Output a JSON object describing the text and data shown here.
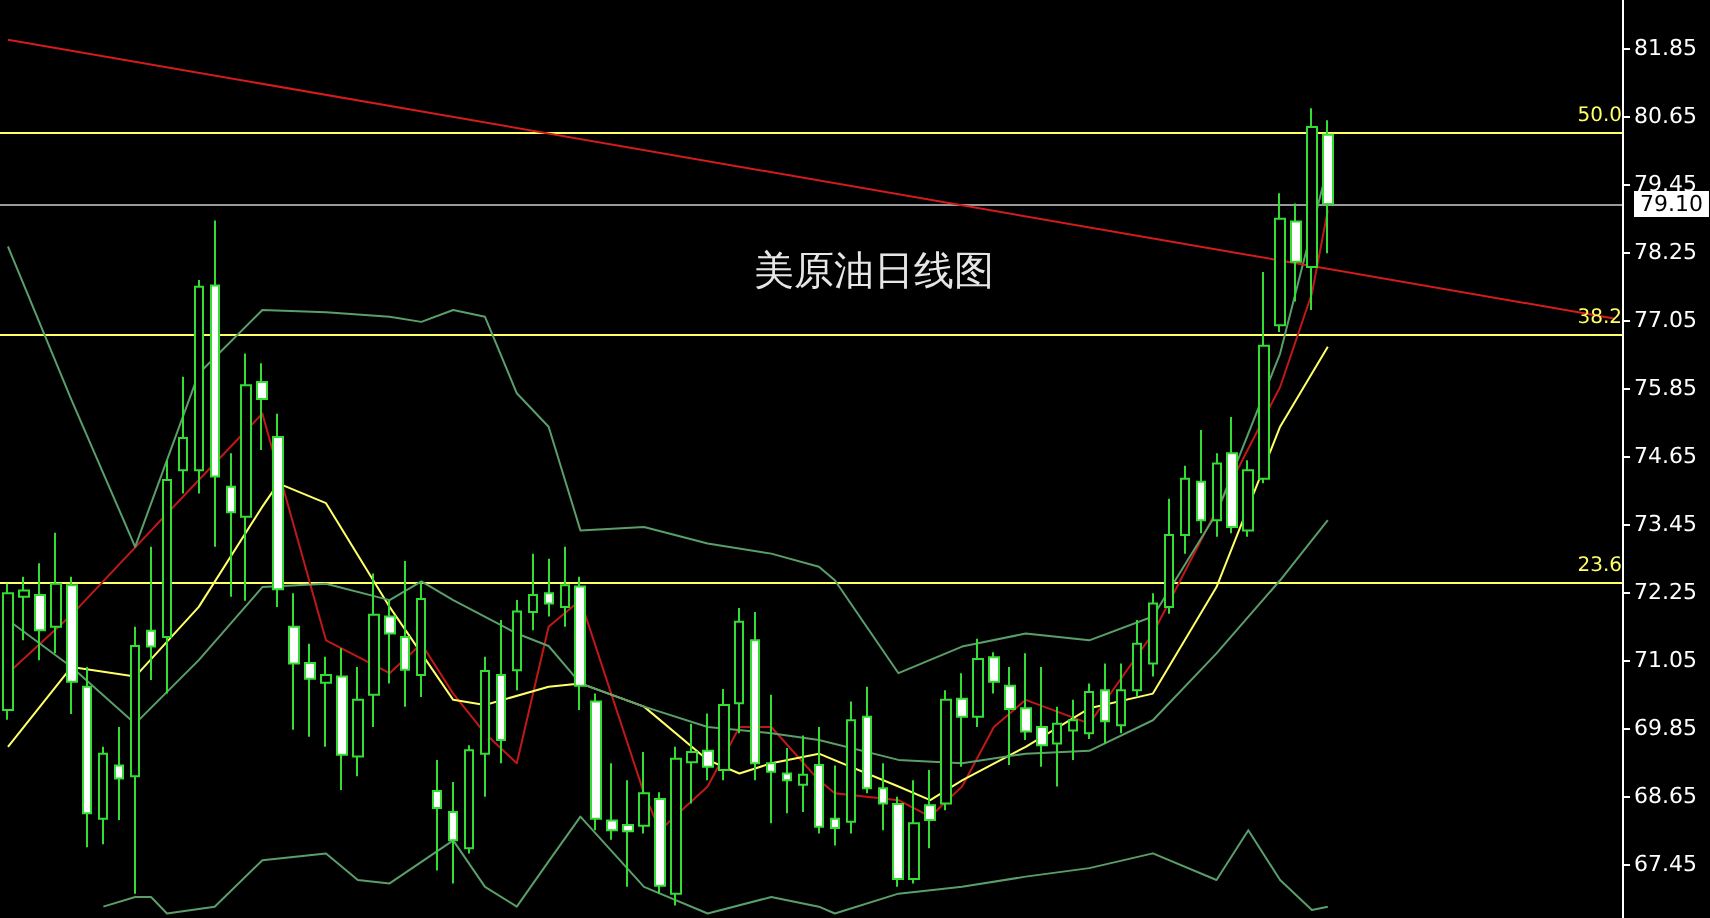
{
  "chart_data": {
    "type": "candlestick",
    "title": "美原油日线图",
    "categories": [
      null,
      null,
      null,
      null,
      null,
      null,
      null,
      null,
      null,
      null,
      null,
      null,
      null,
      null,
      null,
      null,
      null,
      null,
      null,
      null,
      null,
      null,
      null,
      null,
      null,
      null,
      null,
      null,
      null,
      null,
      null,
      null,
      null,
      null,
      null,
      null,
      null,
      null,
      null,
      null,
      null,
      null,
      null,
      null,
      null,
      null,
      null,
      null,
      null,
      null,
      null,
      null,
      null,
      null,
      null,
      null,
      null,
      null,
      null,
      null,
      null,
      null,
      null,
      null,
      null,
      null,
      null,
      null,
      null,
      null,
      null,
      null,
      null,
      null,
      null,
      null,
      null,
      null,
      null,
      null,
      null,
      null,
      null,
      null,
      null,
      null,
      null,
      null,
      null,
      null,
      null,
      null,
      null,
      null,
      null,
      null,
      null,
      null,
      null,
      null,
      null,
      null
    ],
    "color": "#33dd33",
    "ohlc": [
      [
        70.17,
        72.4,
        70.0,
        72.23
      ],
      [
        72.17,
        72.52,
        71.4,
        72.28
      ],
      [
        72.2,
        72.76,
        71.05,
        71.58
      ],
      [
        71.64,
        73.3,
        71.17,
        72.4
      ],
      [
        72.37,
        72.52,
        70.1,
        70.67
      ],
      [
        70.58,
        70.93,
        67.75,
        68.35
      ],
      [
        68.25,
        69.52,
        67.8,
        69.4
      ],
      [
        69.19,
        69.87,
        68.23,
        68.96
      ],
      [
        69.0,
        71.64,
        66.93,
        71.3
      ],
      [
        71.57,
        73.05,
        70.7,
        71.29
      ],
      [
        71.46,
        74.58,
        70.46,
        74.23
      ],
      [
        74.4,
        76.05,
        73.99,
        74.97
      ],
      [
        74.4,
        77.76,
        73.99,
        77.64
      ],
      [
        77.66,
        78.81,
        73.05,
        74.29
      ],
      [
        74.11,
        74.7,
        72.17,
        73.66
      ],
      [
        73.58,
        76.46,
        72.1,
        75.9
      ],
      [
        75.96,
        76.29,
        74.76,
        75.66
      ],
      [
        74.99,
        75.4,
        71.99,
        72.3
      ],
      [
        71.64,
        72.23,
        69.82,
        70.99
      ],
      [
        71.0,
        71.34,
        69.7,
        70.72
      ],
      [
        70.65,
        71.11,
        69.52,
        70.79
      ],
      [
        70.76,
        71.26,
        68.76,
        69.38
      ],
      [
        69.35,
        70.93,
        69.0,
        70.35
      ],
      [
        70.44,
        72.58,
        69.87,
        71.85
      ],
      [
        71.82,
        72.11,
        70.64,
        71.52
      ],
      [
        71.46,
        72.8,
        70.23,
        70.88
      ],
      [
        70.79,
        72.44,
        70.4,
        72.13
      ],
      [
        68.74,
        69.29,
        67.34,
        68.44
      ],
      [
        68.37,
        68.9,
        67.11,
        67.87
      ],
      [
        67.73,
        69.55,
        67.64,
        69.46
      ],
      [
        69.4,
        71.11,
        68.64,
        70.86
      ],
      [
        70.79,
        71.76,
        69.23,
        69.64
      ],
      [
        70.87,
        72.11,
        70.52,
        71.91
      ],
      [
        71.9,
        72.93,
        71.58,
        72.2
      ],
      [
        72.23,
        72.84,
        71.82,
        72.05
      ],
      [
        71.99,
        73.05,
        71.64,
        72.37
      ],
      [
        72.35,
        72.52,
        70.17,
        70.6
      ],
      [
        70.32,
        70.46,
        68.05,
        68.25
      ],
      [
        68.22,
        69.23,
        67.88,
        68.05
      ],
      [
        68.14,
        68.93,
        67.05,
        68.03
      ],
      [
        68.13,
        69.43,
        67.99,
        68.7
      ],
      [
        68.6,
        68.72,
        66.93,
        67.07
      ],
      [
        66.93,
        69.52,
        66.72,
        69.31
      ],
      [
        69.25,
        69.93,
        68.52,
        69.43
      ],
      [
        69.45,
        70.11,
        68.93,
        69.17
      ],
      [
        69.11,
        70.54,
        68.93,
        70.26
      ],
      [
        70.29,
        71.97,
        69.76,
        71.73
      ],
      [
        71.4,
        71.9,
        68.93,
        69.23
      ],
      [
        69.23,
        70.44,
        68.17,
        69.08
      ],
      [
        69.05,
        69.5,
        68.35,
        68.93
      ],
      [
        68.85,
        69.72,
        68.37,
        69.03
      ],
      [
        69.2,
        69.87,
        67.99,
        68.11
      ],
      [
        68.25,
        69.19,
        67.78,
        68.09
      ],
      [
        68.2,
        70.32,
        67.99,
        69.99
      ],
      [
        70.05,
        70.58,
        68.7,
        68.79
      ],
      [
        68.79,
        69.23,
        68.05,
        68.52
      ],
      [
        68.51,
        68.64,
        67.05,
        67.19
      ],
      [
        67.19,
        68.93,
        67.11,
        68.17
      ],
      [
        68.49,
        69.11,
        67.73,
        68.23
      ],
      [
        68.52,
        70.52,
        68.4,
        70.35
      ],
      [
        70.37,
        70.82,
        69.17,
        70.05
      ],
      [
        70.05,
        71.43,
        69.87,
        71.07
      ],
      [
        71.1,
        71.19,
        70.46,
        70.67
      ],
      [
        70.6,
        70.93,
        69.2,
        70.19
      ],
      [
        70.2,
        71.17,
        69.64,
        69.79
      ],
      [
        69.87,
        70.93,
        69.17,
        69.55
      ],
      [
        69.58,
        70.23,
        68.82,
        69.93
      ],
      [
        69.81,
        70.35,
        69.29,
        69.99
      ],
      [
        69.76,
        70.64,
        69.66,
        70.49
      ],
      [
        70.52,
        70.99,
        69.58,
        69.97
      ],
      [
        69.9,
        70.99,
        69.76,
        70.52
      ],
      [
        70.52,
        71.76,
        70.4,
        71.34
      ],
      [
        70.99,
        72.23,
        70.76,
        72.05
      ],
      [
        71.99,
        73.9,
        71.87,
        73.26
      ],
      [
        73.26,
        74.48,
        72.93,
        74.25
      ],
      [
        74.2,
        75.11,
        73.29,
        73.52
      ],
      [
        73.52,
        74.7,
        73.23,
        74.52
      ],
      [
        74.7,
        75.34,
        73.29,
        73.4
      ],
      [
        73.34,
        74.58,
        73.23,
        74.4
      ],
      [
        74.25,
        77.9,
        74.17,
        76.6
      ],
      [
        76.96,
        79.29,
        76.84,
        78.84
      ],
      [
        78.79,
        79.11,
        77.38,
        78.08
      ],
      [
        77.99,
        80.79,
        77.23,
        80.46
      ],
      [
        80.32,
        80.58,
        78.23,
        79.1
      ],
      null,
      null,
      null,
      null,
      null,
      null,
      null,
      null,
      null,
      null,
      null,
      null,
      null,
      null,
      null,
      null,
      null,
      null
    ],
    "series": [
      {
        "type": "line",
        "color": "#c01818",
        "values": [
          70.82,
          null,
          null,
          null,
          71.85,
          null,
          null,
          null,
          null,
          null,
          null,
          null,
          74.23,
          null,
          null,
          null,
          75.4,
          null,
          null,
          null,
          71.4,
          null,
          null,
          null,
          70.82,
          null,
          71.34,
          null,
          70.46,
          null,
          69.76,
          null,
          69.23,
          null,
          71.64,
          null,
          72.11,
          null,
          null,
          null,
          68.7,
          68.05,
          null,
          null,
          68.82,
          null,
          69.87,
          null,
          69.87,
          null,
          null,
          68.93,
          68.7,
          null,
          null,
          null,
          68.58,
          null,
          68.29,
          null,
          68.82,
          null,
          69.87,
          null,
          70.35,
          null,
          null,
          null,
          69.93,
          null,
          null,
          null,
          71.52,
          null,
          null,
          null,
          null,
          null,
          null,
          null,
          75.87,
          null,
          77.52,
          78.99,
          null,
          null,
          null,
          null,
          null,
          null,
          null,
          null,
          null,
          null,
          null,
          null,
          null,
          null,
          null,
          null,
          null,
          null
        ]
      },
      {
        "type": "line",
        "color": "#ffff66",
        "values": [
          69.52,
          null,
          null,
          null,
          70.93,
          null,
          null,
          null,
          70.76,
          null,
          null,
          null,
          71.99,
          null,
          null,
          null,
          73.76,
          74.17,
          null,
          null,
          73.82,
          null,
          null,
          null,
          71.99,
          null,
          null,
          null,
          70.35,
          null,
          70.26,
          null,
          null,
          null,
          70.58,
          null,
          70.64,
          null,
          null,
          null,
          70.23,
          null,
          null,
          null,
          69.29,
          null,
          69.05,
          null,
          69.23,
          null,
          null,
          69.4,
          null,
          null,
          null,
          null,
          68.82,
          null,
          68.58,
          null,
          68.93,
          null,
          null,
          null,
          69.52,
          null,
          null,
          null,
          70.2,
          null,
          null,
          null,
          70.46,
          null,
          null,
          null,
          72.34,
          null,
          null,
          null,
          75.17,
          null,
          null,
          76.58,
          null,
          null,
          null,
          null,
          null,
          null,
          null,
          null,
          null,
          null,
          null,
          null,
          null,
          null,
          null,
          null,
          null,
          null
        ]
      },
      {
        "type": "line",
        "color": "#5a9e6a",
        "values": [
          71.76,
          null,
          null,
          null,
          70.93,
          null,
          null,
          null,
          69.93,
          null,
          null,
          null,
          71.05,
          null,
          null,
          null,
          72.34,
          null,
          null,
          null,
          72.4,
          null,
          null,
          null,
          72.11,
          null,
          72.44,
          null,
          72.11,
          null,
          null,
          null,
          71.52,
          null,
          71.3,
          null,
          70.64,
          null,
          null,
          null,
          70.23,
          null,
          null,
          null,
          69.87,
          null,
          null,
          null,
          69.76,
          null,
          null,
          69.64,
          null,
          null,
          null,
          null,
          69.29,
          null,
          null,
          null,
          69.23,
          null,
          null,
          null,
          69.4,
          null,
          null,
          null,
          69.45,
          null,
          null,
          null,
          69.99,
          null,
          null,
          null,
          71.17,
          null,
          null,
          null,
          72.46,
          null,
          null,
          73.52,
          null,
          null,
          null,
          null,
          null,
          null,
          null,
          null,
          null,
          null,
          null,
          null,
          null,
          null,
          null,
          null,
          null,
          null
        ]
      },
      {
        "type": "line",
        "color": "#5a9e6a",
        "values": [
          78.35,
          null,
          null,
          null,
          75.64,
          null,
          null,
          null,
          73.05,
          null,
          null,
          null,
          76.11,
          null,
          null,
          null,
          77.23,
          null,
          null,
          null,
          77.19,
          null,
          null,
          null,
          77.11,
          null,
          77.02,
          null,
          77.23,
          null,
          77.11,
          null,
          75.76,
          null,
          75.17,
          null,
          73.34,
          null,
          null,
          null,
          73.4,
          null,
          null,
          null,
          73.11,
          null,
          null,
          null,
          72.93,
          null,
          null,
          72.7,
          72.46,
          null,
          null,
          null,
          70.82,
          null,
          null,
          null,
          71.29,
          null,
          null,
          null,
          71.52,
          null,
          null,
          null,
          71.4,
          null,
          null,
          null,
          71.82,
          null,
          null,
          null,
          73.64,
          null,
          null,
          null,
          76.46,
          null,
          null,
          79.76,
          null,
          null,
          null,
          null,
          null,
          null,
          null,
          null,
          null,
          null,
          null,
          null,
          null,
          null,
          null,
          null,
          null,
          null
        ]
      },
      {
        "type": "line",
        "color": "#5a9e6a",
        "values": [
          null,
          null,
          null,
          null,
          null,
          null,
          66.7,
          null,
          66.87,
          66.87,
          66.58,
          null,
          null,
          66.7,
          null,
          null,
          67.52,
          null,
          null,
          null,
          67.64,
          null,
          67.17,
          null,
          67.11,
          null,
          null,
          null,
          67.87,
          null,
          67.05,
          null,
          66.7,
          null,
          67.5,
          null,
          68.29,
          null,
          null,
          null,
          67.05,
          null,
          null,
          null,
          66.58,
          null,
          null,
          null,
          66.87,
          null,
          null,
          66.7,
          66.58,
          null,
          null,
          null,
          66.93,
          null,
          null,
          null,
          67.05,
          null,
          null,
          null,
          67.23,
          null,
          null,
          null,
          67.38,
          null,
          null,
          null,
          67.64,
          null,
          null,
          null,
          67.17,
          null,
          68.05,
          null,
          67.17,
          null,
          66.64,
          66.7,
          null,
          null,
          null,
          null,
          null,
          null,
          null,
          null,
          null,
          null,
          null,
          null,
          null,
          null,
          null,
          null,
          null,
          null
        ]
      },
      {
        "type": "line",
        "color": "#d41c1c",
        "values": [
          82.0,
          null,
          null,
          null,
          null,
          null,
          null,
          null,
          null,
          null,
          null,
          null,
          null,
          null,
          null,
          null,
          null,
          null,
          null,
          null,
          null,
          null,
          null,
          null,
          null,
          null,
          null,
          null,
          null,
          null,
          null,
          null,
          null,
          null,
          null,
          null,
          null,
          null,
          null,
          null,
          null,
          null,
          null,
          null,
          null,
          null,
          null,
          null,
          null,
          null,
          null,
          null,
          null,
          null,
          null,
          null,
          null,
          null,
          null,
          null,
          null,
          null,
          null,
          null,
          null,
          null,
          null,
          null,
          null,
          null,
          null,
          null,
          null,
          null,
          null,
          null,
          null,
          null,
          null,
          null,
          null,
          null,
          null,
          null,
          null,
          null,
          null,
          null,
          null,
          null,
          null,
          null,
          null,
          null,
          null,
          null,
          null,
          null,
          null,
          null,
          null,
          77.08
        ]
      }
    ],
    "ylim": [
      66.5,
      82.7
    ],
    "yticks": [
      67.45,
      68.65,
      69.85,
      71.05,
      72.25,
      73.45,
      74.65,
      75.85,
      77.05,
      78.25,
      79.45,
      80.65,
      81.85
    ],
    "ref_lines": [
      {
        "axis": "y",
        "value": 80.37,
        "color": "#ffff66"
      },
      {
        "axis": "y",
        "value": 79.1,
        "label": "79.10",
        "color": "#9a9a9a"
      },
      {
        "axis": "y",
        "value": 76.8,
        "color": "#ffff66"
      },
      {
        "axis": "y",
        "value": 72.43,
        "color": "#ffff66"
      }
    ],
    "annotations": [
      {
        "text": "50.0",
        "y": 80.37
      },
      {
        "text": "38.2",
        "y": 76.8
      },
      {
        "text": "23.6",
        "y": 72.43
      }
    ],
    "tick_labels": "y"
  }
}
